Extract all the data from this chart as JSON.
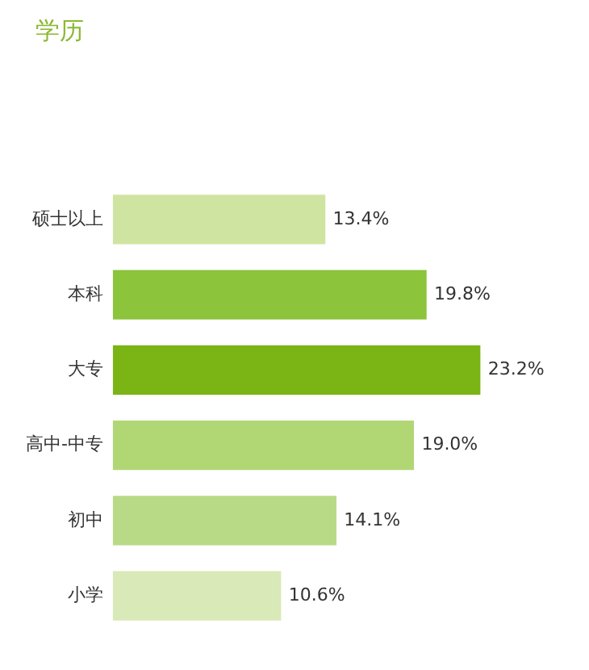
{
  "chart_data": {
    "type": "bar",
    "orientation": "horizontal",
    "title": "学历",
    "categories": [
      "硕士以上",
      "本科",
      "大专",
      "高中-中专",
      "初中",
      "小学"
    ],
    "values": [
      13.4,
      19.8,
      23.2,
      19.0,
      14.1,
      10.6
    ],
    "colors": [
      "#cfe4a1",
      "#8cc43c",
      "#7ab515",
      "#b1d775",
      "#b8da86",
      "#d9e9b8"
    ],
    "value_labels": [
      "13.4%",
      "19.8%",
      "23.2%",
      "19.0%",
      "14.1%",
      "10.6%"
    ],
    "grid": false,
    "legend": false
  }
}
